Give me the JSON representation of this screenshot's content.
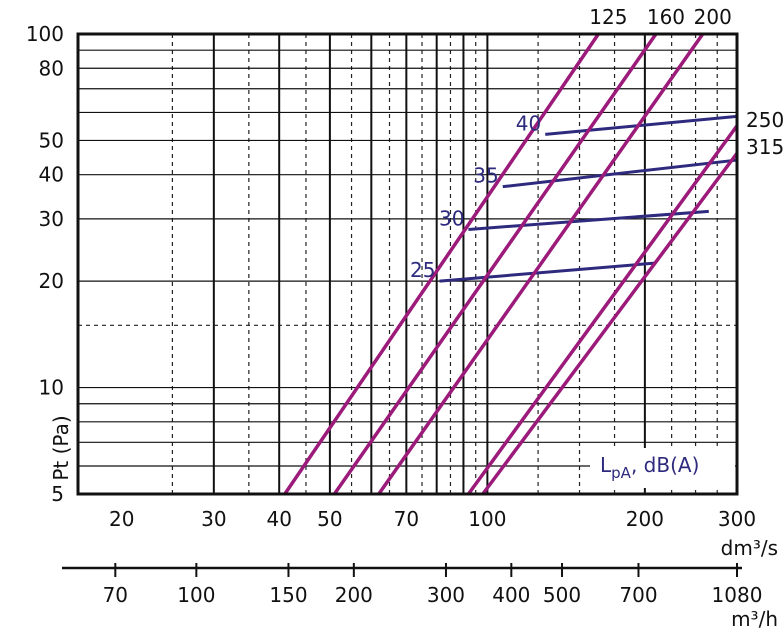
{
  "chart_data": {
    "type": "line",
    "x_scale": "log",
    "y_scale": "log",
    "x_unit_primary": "dm³/s",
    "x_unit_secondary": "m³/h",
    "y_label": "Pt (Pa)",
    "xlim": [
      16.5,
      300
    ],
    "ylim": [
      5,
      100
    ],
    "x_ticks_primary": [
      20,
      30,
      40,
      50,
      70,
      100,
      200,
      300
    ],
    "x_ticks_secondary": [
      70,
      100,
      150,
      200,
      300,
      400,
      500,
      700,
      1080
    ],
    "y_ticks": [
      5,
      10,
      20,
      30,
      40,
      50,
      80,
      100
    ],
    "grid_dashed_x": [
      25,
      35,
      45,
      55,
      65,
      75,
      85,
      95,
      125,
      150,
      175,
      225,
      250,
      275
    ],
    "grid_solid_x": [
      30,
      40,
      50,
      60,
      70,
      80,
      90,
      100,
      200
    ],
    "grid_dashed_y": [
      15
    ],
    "grid_solid_y": [
      6,
      7,
      8,
      9,
      10,
      20,
      30,
      40,
      50,
      60,
      70,
      80,
      90
    ],
    "series": [
      {
        "name": "125",
        "color": "#9b1a7a",
        "points": [
          [
            41,
            5
          ],
          [
            163,
            100
          ]
        ]
      },
      {
        "name": "160",
        "color": "#9b1a7a",
        "points": [
          [
            51,
            5
          ],
          [
            210,
            100
          ]
        ]
      },
      {
        "name": "200",
        "color": "#9b1a7a",
        "points": [
          [
            62,
            5
          ],
          [
            258,
            100
          ]
        ]
      },
      {
        "name": "250",
        "color": "#9b1a7a",
        "points": [
          [
            92,
            5
          ],
          [
            300,
            55
          ]
        ]
      },
      {
        "name": "315",
        "color": "#9b1a7a",
        "points": [
          [
            98,
            5
          ],
          [
            300,
            46
          ]
        ]
      }
    ],
    "sound_levels": [
      {
        "label": "25",
        "color": "#2e2a7e",
        "points": [
          [
            81,
            20
          ],
          [
            210,
            22.5
          ]
        ]
      },
      {
        "label": "30",
        "color": "#2e2a7e",
        "points": [
          [
            92,
            28
          ],
          [
            265,
            31.5
          ]
        ]
      },
      {
        "label": "35",
        "color": "#2e2a7e",
        "points": [
          [
            107,
            37
          ],
          [
            300,
            44
          ]
        ]
      },
      {
        "label": "40",
        "color": "#2e2a7e",
        "points": [
          [
            129,
            52
          ],
          [
            300,
            58.5
          ]
        ]
      }
    ],
    "legend": "LpA, dB(A)",
    "legend_placement": "bottom-right"
  },
  "labels": {
    "y_axis": "Pt (Pa)",
    "x_unit_primary": "dm³/s",
    "x_unit_secondary": "m³/h",
    "legend_main": "L",
    "legend_sub": "pA",
    "legend_rest": ", dB(A)"
  }
}
